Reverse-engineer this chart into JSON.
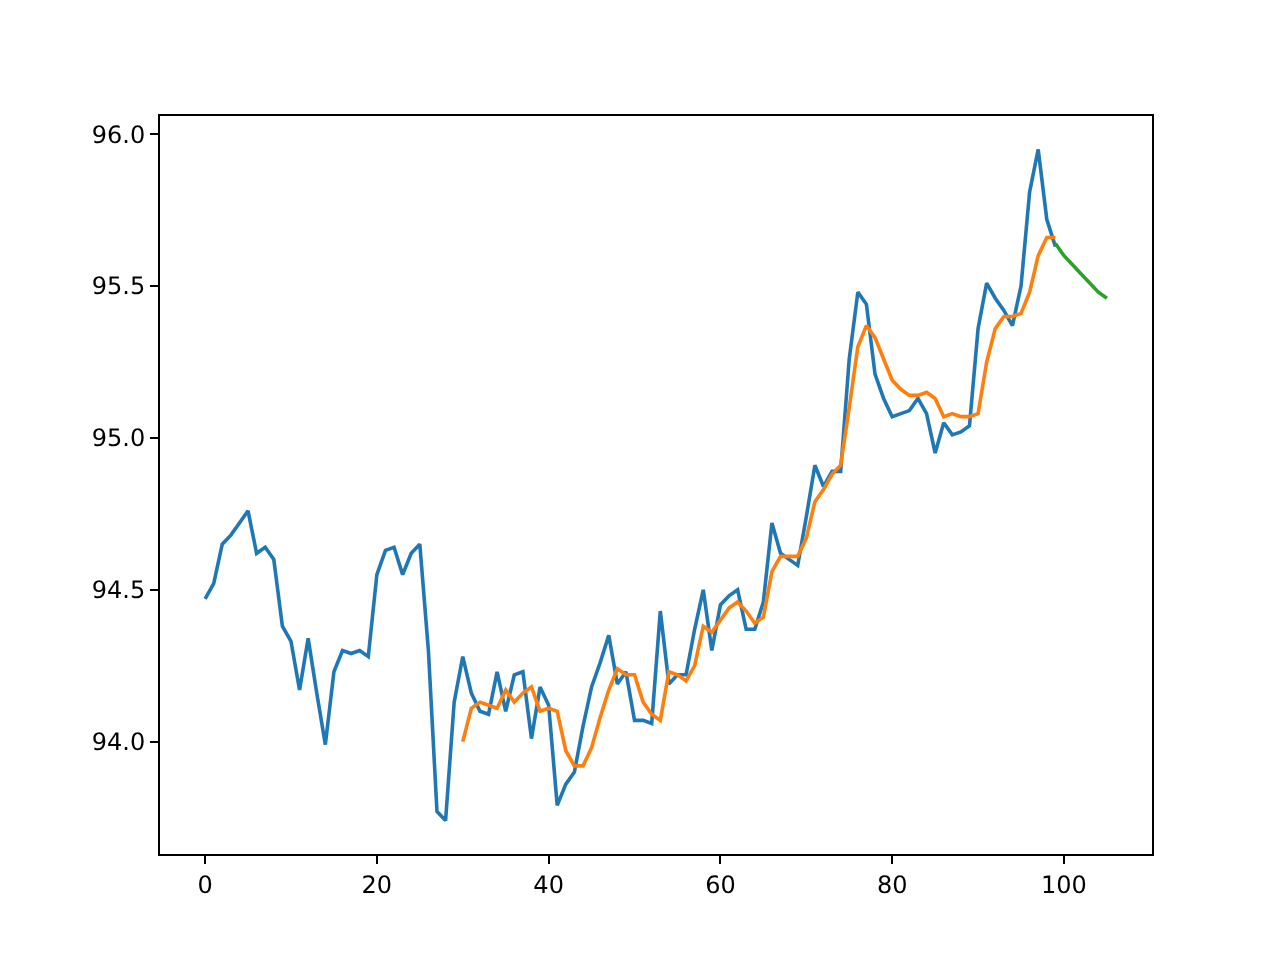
{
  "chart_data": {
    "type": "line",
    "xlim": [
      -5.25,
      110.25
    ],
    "ylim": [
      93.63,
      96.06
    ],
    "xticks": [
      0,
      20,
      40,
      60,
      80,
      100
    ],
    "yticks": [
      {
        "value": 94.0,
        "label": "94.0"
      },
      {
        "value": 94.5,
        "label": "94.5"
      },
      {
        "value": 95.0,
        "label": "95.0"
      },
      {
        "value": 95.5,
        "label": "95.5"
      },
      {
        "value": 96.0,
        "label": "96.0"
      }
    ],
    "marker": "none",
    "line_style": "solid",
    "series": [
      {
        "color": "#1f77b4",
        "x": [
          0,
          1,
          2,
          3,
          4,
          5,
          6,
          7,
          8,
          9,
          10,
          11,
          12,
          13,
          14,
          15,
          16,
          17,
          18,
          19,
          20,
          21,
          22,
          23,
          24,
          25,
          26,
          27,
          28,
          29,
          30,
          31,
          32,
          33,
          34,
          35,
          36,
          37,
          38,
          39,
          40,
          41,
          42,
          43,
          44,
          45,
          46,
          47,
          48,
          49,
          50,
          51,
          52,
          53,
          54,
          55,
          56,
          57,
          58,
          59,
          60,
          61,
          62,
          63,
          64,
          65,
          66,
          67,
          68,
          69,
          70,
          71,
          72,
          73,
          74,
          75,
          76,
          77,
          78,
          79,
          80,
          81,
          82,
          83,
          84,
          85,
          86,
          87,
          88,
          89,
          90,
          91,
          92,
          93,
          94,
          95,
          96,
          97,
          98,
          99
        ],
        "values": [
          94.47,
          94.52,
          94.65,
          94.68,
          94.72,
          94.76,
          94.62,
          94.64,
          94.6,
          94.38,
          94.33,
          94.17,
          94.34,
          94.16,
          93.99,
          94.23,
          94.3,
          94.29,
          94.3,
          94.28,
          94.55,
          94.63,
          94.64,
          94.55,
          94.62,
          94.65,
          94.3,
          93.77,
          93.74,
          94.13,
          94.28,
          94.16,
          94.1,
          94.09,
          94.23,
          94.1,
          94.22,
          94.23,
          94.01,
          94.18,
          94.12,
          93.79,
          93.86,
          93.9,
          94.05,
          94.18,
          94.26,
          94.35,
          94.19,
          94.23,
          94.07,
          94.07,
          94.06,
          94.43,
          94.19,
          94.22,
          94.22,
          94.37,
          94.5,
          94.3,
          94.45,
          94.48,
          94.5,
          94.37,
          94.37,
          94.46,
          94.72,
          94.62,
          94.6,
          94.58,
          94.74,
          94.91,
          94.84,
          94.89,
          94.89,
          95.26,
          95.48,
          95.44,
          95.21,
          95.13,
          95.07,
          95.08,
          95.09,
          95.13,
          95.08,
          94.95,
          95.05,
          95.01,
          95.02,
          95.04,
          95.36,
          95.51,
          95.46,
          95.42,
          95.37,
          95.5,
          95.81,
          95.95,
          95.72,
          95.63
        ]
      },
      {
        "color": "#ff7f0e",
        "x": [
          30,
          31,
          32,
          33,
          34,
          35,
          36,
          37,
          38,
          39,
          40,
          41,
          42,
          43,
          44,
          45,
          46,
          47,
          48,
          49,
          50,
          51,
          52,
          53,
          54,
          55,
          56,
          57,
          58,
          59,
          60,
          61,
          62,
          63,
          64,
          65,
          66,
          67,
          68,
          69,
          70,
          71,
          72,
          73,
          74,
          75,
          76,
          77,
          78,
          79,
          80,
          81,
          82,
          83,
          84,
          85,
          86,
          87,
          88,
          89,
          90,
          91,
          92,
          93,
          94,
          95,
          96,
          97,
          98,
          99
        ],
        "values": [
          94.0,
          94.11,
          94.13,
          94.12,
          94.11,
          94.17,
          94.13,
          94.16,
          94.18,
          94.1,
          94.11,
          94.1,
          93.97,
          93.92,
          93.92,
          93.98,
          94.08,
          94.17,
          94.24,
          94.22,
          94.22,
          94.13,
          94.09,
          94.07,
          94.23,
          94.22,
          94.2,
          94.25,
          94.38,
          94.36,
          94.4,
          94.44,
          94.46,
          94.43,
          94.39,
          94.41,
          94.56,
          94.61,
          94.61,
          94.61,
          94.67,
          94.79,
          94.83,
          94.88,
          94.91,
          95.1,
          95.3,
          95.37,
          95.33,
          95.26,
          95.19,
          95.16,
          95.14,
          95.14,
          95.15,
          95.13,
          95.07,
          95.08,
          95.07,
          95.07,
          95.08,
          95.25,
          95.36,
          95.4,
          95.4,
          95.41,
          95.48,
          95.6,
          95.66,
          95.66
        ]
      },
      {
        "color": "#2ca02c",
        "x": [
          99,
          100,
          101,
          102,
          103,
          104,
          105
        ],
        "values": [
          95.64,
          95.6,
          95.57,
          95.54,
          95.51,
          95.48,
          95.46
        ]
      }
    ]
  }
}
